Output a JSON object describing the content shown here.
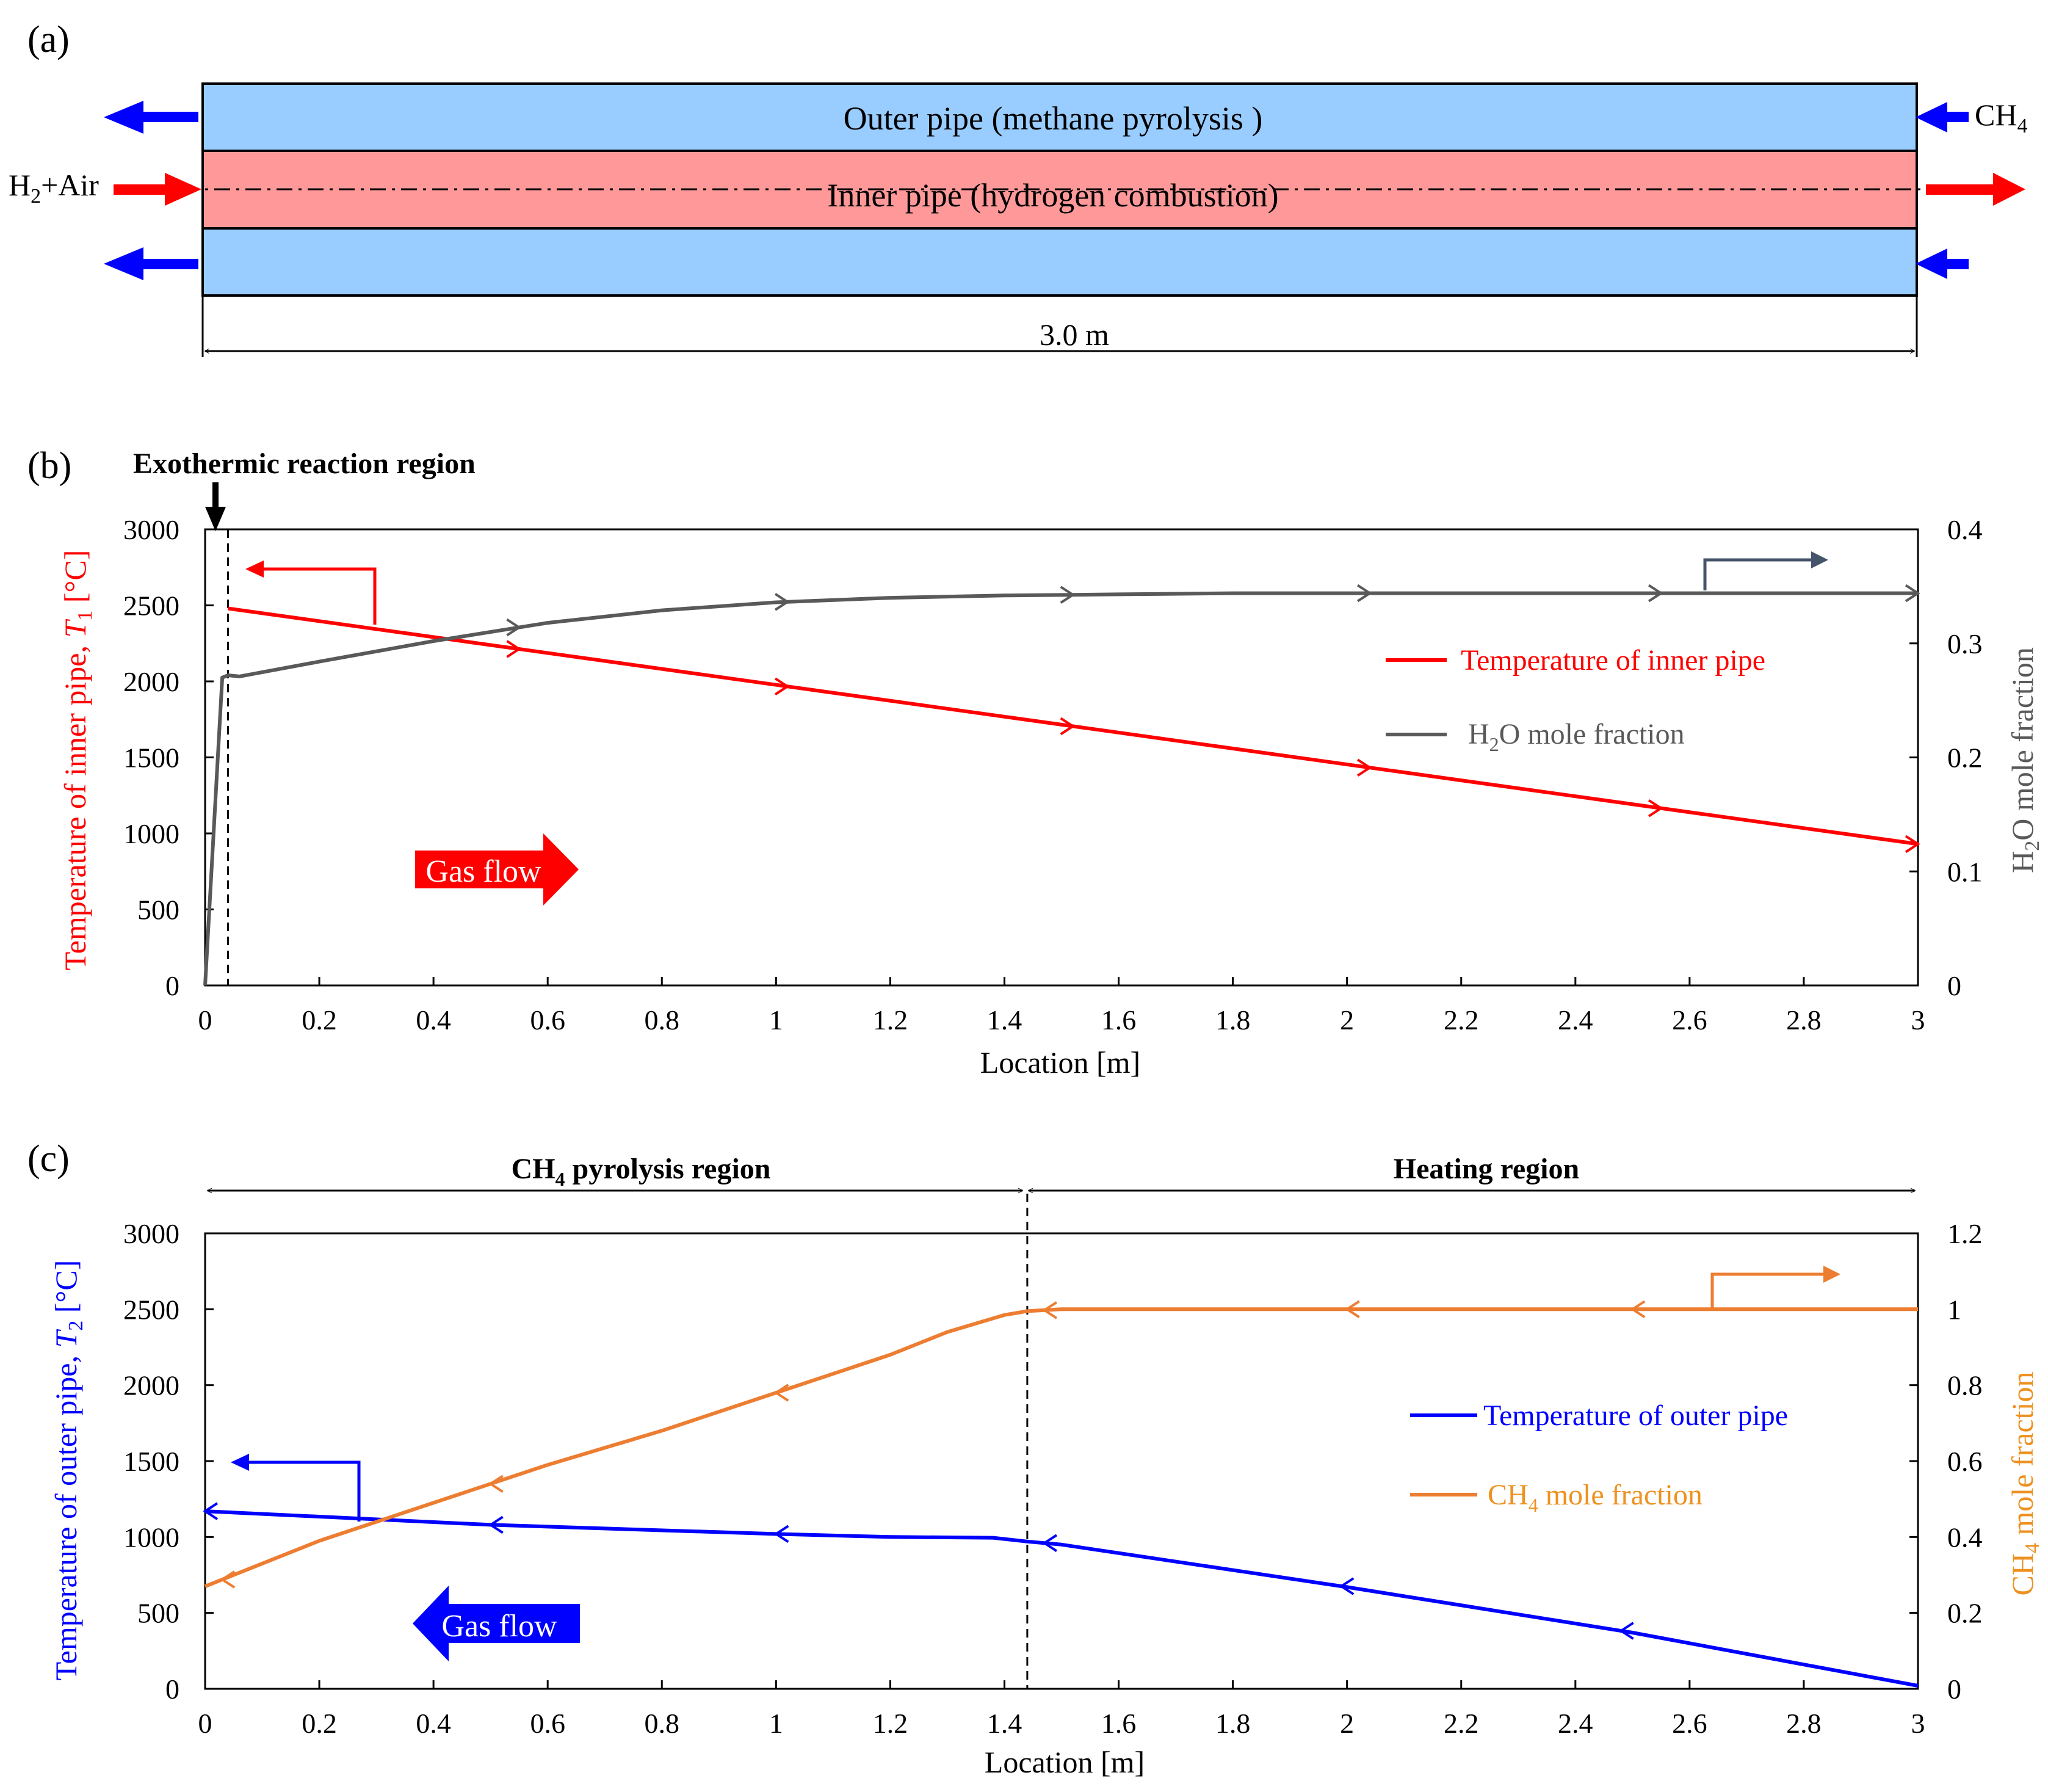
{
  "colors": {
    "red": "#ff0000",
    "blue": "#0000ff",
    "gray": "#595959",
    "orange": "#ed7d31",
    "orange_text": "#ed9120",
    "outer_fill": "#99ccff",
    "inner_fill": "#ff9999",
    "slate": "#44546a"
  },
  "panel_a": {
    "label": "(a)",
    "outer_pipe": "Outer pipe (methane pyrolysis )",
    "inner_pipe": "Inner pipe (hydrogen combustion)",
    "h2_air": {
      "pre": "H",
      "sub": "2",
      "post": "+Air"
    },
    "ch4": {
      "pre": "CH",
      "sub": "4",
      "post": ""
    },
    "length": "3.0 m"
  },
  "chart_data": [
    {
      "type": "line",
      "panel_label": "(b)",
      "annotation": "Exothermic reaction region",
      "gas_flow": "Gas flow",
      "xlabel": "Location [m]",
      "ylabel": {
        "pre": "Temperature of inner pipe, ",
        "italic": "T",
        "sub": "1",
        "post": " [°C]"
      },
      "y2label": {
        "pre": "H",
        "sub": "2",
        "post": "O mole fraction"
      },
      "xlim": [
        0,
        3
      ],
      "ylim": [
        0,
        3000
      ],
      "y2lim": [
        0,
        0.4
      ],
      "x_ticks": [
        "0",
        "0.2",
        "0.4",
        "0.6",
        "0.8",
        "1",
        "1.2",
        "1.4",
        "1.6",
        "1.8",
        "2",
        "2.2",
        "2.4",
        "2.6",
        "2.8",
        "3"
      ],
      "y_ticks": [
        "0",
        "500",
        "1000",
        "1500",
        "2000",
        "2500",
        "3000"
      ],
      "y2_ticks": [
        "0",
        "0.1",
        "0.2",
        "0.3",
        "0.4"
      ],
      "reaction_boundary_x": 0.04,
      "series": [
        {
          "name": "Temperature of inner pipe",
          "axis": "left",
          "color": "red",
          "x": [
            0.04,
            3.0
          ],
          "y": [
            2480,
            930
          ],
          "arrow_x": [
            0.55,
            1.02,
            1.52,
            2.04,
            2.55,
            3.0
          ]
        },
        {
          "name": "H2O mole fraction",
          "axis": "right",
          "color": "gray",
          "x": [
            0,
            0.03,
            0.04,
            0.06,
            0.2,
            0.4,
            0.6,
            0.8,
            1.0,
            1.2,
            1.4,
            1.6,
            1.8,
            2.0,
            2.5,
            3.0
          ],
          "y": [
            0,
            0.27,
            0.272,
            0.271,
            0.284,
            0.302,
            0.318,
            0.329,
            0.336,
            0.34,
            0.342,
            0.343,
            0.344,
            0.344,
            0.344,
            0.344
          ],
          "arrow_x": [
            0.55,
            1.02,
            1.52,
            2.04,
            2.55,
            3.0
          ]
        }
      ],
      "legend": {
        "temp": "Temperature of inner pipe",
        "frac": {
          "pre": "H",
          "sub": "2",
          "post": "O mole fraction"
        }
      }
    },
    {
      "type": "line",
      "panel_label": "(c)",
      "region_left": {
        "pre": "CH",
        "sub": "4",
        "post": " pyrolysis region"
      },
      "region_right": "Heating region",
      "gas_flow": "Gas flow",
      "xlabel": "Location [m]",
      "ylabel": {
        "pre": "Temperature of outer pipe, ",
        "italic": "T",
        "sub": "2",
        "post": " [°C]"
      },
      "y2label": {
        "pre": "CH",
        "sub": "4",
        "post": " mole fraction"
      },
      "xlim": [
        0,
        3
      ],
      "ylim": [
        0,
        3000
      ],
      "y2lim": [
        0,
        1.2
      ],
      "x_ticks": [
        "0",
        "0.2",
        "0.4",
        "0.6",
        "0.8",
        "1",
        "1.2",
        "1.4",
        "1.6",
        "1.8",
        "2",
        "2.2",
        "2.4",
        "2.6",
        "2.8",
        "3"
      ],
      "y_ticks": [
        "0",
        "500",
        "1000",
        "1500",
        "2000",
        "2500",
        "3000"
      ],
      "y2_ticks": [
        "0",
        "0.2",
        "0.4",
        "0.6",
        "0.8",
        "1",
        "1.2"
      ],
      "region_boundary_x": 1.44,
      "series": [
        {
          "name": "Temperature of outer pipe",
          "axis": "left",
          "color": "blue",
          "x": [
            0,
            0.5,
            1.0,
            1.2,
            1.38,
            1.44,
            1.5,
            2.0,
            2.5,
            3.0
          ],
          "y": [
            1170,
            1080,
            1020,
            1000,
            995,
            970,
            950,
            670,
            370,
            20
          ],
          "arrow_x": [
            0.0,
            0.5,
            1.0,
            1.47,
            1.99,
            2.48
          ]
        },
        {
          "name": "CH4 mole fraction",
          "axis": "right",
          "color": "orange",
          "x": [
            0,
            0.2,
            0.4,
            0.6,
            0.8,
            1.0,
            1.2,
            1.3,
            1.4,
            1.44,
            1.5,
            2.0,
            2.5,
            3.0
          ],
          "y": [
            0.27,
            0.39,
            0.49,
            0.59,
            0.68,
            0.78,
            0.88,
            0.94,
            0.985,
            0.995,
            1.0,
            1.0,
            1.0,
            1.0
          ],
          "arrow_x": [
            0.03,
            0.5,
            1.0,
            1.47,
            2.0,
            2.5
          ]
        }
      ],
      "legend": {
        "temp": "Temperature of outer pipe",
        "frac": {
          "pre": "CH",
          "sub": "4",
          "post": " mole fraction"
        }
      }
    }
  ]
}
